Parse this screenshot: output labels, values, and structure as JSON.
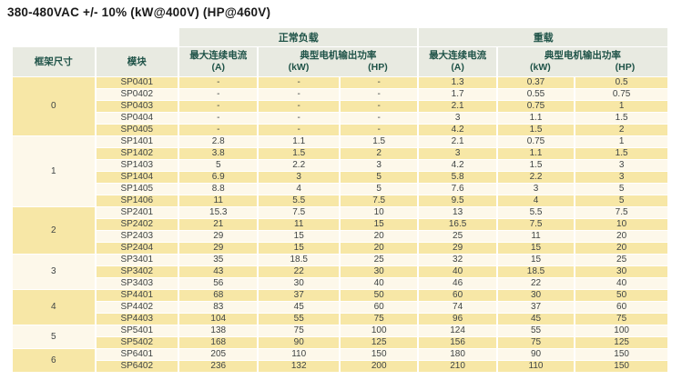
{
  "title": "380-480VAC +/- 10% (kW@400V) (HP@460V)",
  "colors": {
    "row_yellow": "#f7e7a6",
    "row_cream": "#fdf8ea",
    "header_bg": "#e8eae1",
    "header_text": "#1f5348",
    "data_text": "#3f4444"
  },
  "table": {
    "header": {
      "frame_size": "框架尺寸",
      "module": "模块",
      "normal_load": "正常负载",
      "heavy_load": "重载",
      "max_current": "最大连续电流",
      "current_unit": "(A)",
      "typical_power": "典型电机输出功率",
      "kw_unit": "(kW)",
      "hp_unit": "(HP)"
    },
    "groups": [
      {
        "frame": "0",
        "rows": [
          {
            "module": "SP0401",
            "values": [
              "-",
              "-",
              "-",
              "1.3",
              "0.37",
              "0.5"
            ]
          },
          {
            "module": "SP0402",
            "values": [
              "-",
              "-",
              "-",
              "1.7",
              "0.55",
              "0.75"
            ]
          },
          {
            "module": "SP0403",
            "values": [
              "-",
              "-",
              "-",
              "2.1",
              "0.75",
              "1"
            ]
          },
          {
            "module": "SP0404",
            "values": [
              "-",
              "-",
              "-",
              "3",
              "1.1",
              "1.5"
            ]
          },
          {
            "module": "SP0405",
            "values": [
              "-",
              "-",
              "-",
              "4.2",
              "1.5",
              "2"
            ]
          }
        ]
      },
      {
        "frame": "1",
        "rows": [
          {
            "module": "SP1401",
            "values": [
              "2.8",
              "1.1",
              "1.5",
              "2.1",
              "0.75",
              "1"
            ]
          },
          {
            "module": "SP1402",
            "values": [
              "3.8",
              "1.5",
              "2",
              "3",
              "1.1",
              "1.5"
            ]
          },
          {
            "module": "SP1403",
            "values": [
              "5",
              "2.2",
              "3",
              "4.2",
              "1.5",
              "3"
            ]
          },
          {
            "module": "SP1404",
            "values": [
              "6.9",
              "3",
              "5",
              "5.8",
              "2.2",
              "3"
            ]
          },
          {
            "module": "SP1405",
            "values": [
              "8.8",
              "4",
              "5",
              "7.6",
              "3",
              "5"
            ]
          },
          {
            "module": "SP1406",
            "values": [
              "11",
              "5.5",
              "7.5",
              "9.5",
              "4",
              "5"
            ]
          }
        ]
      },
      {
        "frame": "2",
        "rows": [
          {
            "module": "SP2401",
            "values": [
              "15.3",
              "7.5",
              "10",
              "13",
              "5.5",
              "7.5"
            ]
          },
          {
            "module": "SP2402",
            "values": [
              "21",
              "11",
              "15",
              "16.5",
              "7.5",
              "10"
            ]
          },
          {
            "module": "SP2403",
            "values": [
              "29",
              "15",
              "20",
              "25",
              "11",
              "20"
            ]
          },
          {
            "module": "SP2404",
            "values": [
              "29",
              "15",
              "20",
              "29",
              "15",
              "20"
            ]
          }
        ]
      },
      {
        "frame": "3",
        "rows": [
          {
            "module": "SP3401",
            "values": [
              "35",
              "18.5",
              "25",
              "32",
              "15",
              "25"
            ]
          },
          {
            "module": "SP3402",
            "values": [
              "43",
              "22",
              "30",
              "40",
              "18.5",
              "30"
            ]
          },
          {
            "module": "SP3403",
            "values": [
              "56",
              "30",
              "40",
              "46",
              "22",
              "40"
            ]
          }
        ]
      },
      {
        "frame": "4",
        "rows": [
          {
            "module": "SP4401",
            "values": [
              "68",
              "37",
              "50",
              "60",
              "30",
              "50"
            ]
          },
          {
            "module": "SP4402",
            "values": [
              "83",
              "45",
              "60",
              "74",
              "37",
              "60"
            ]
          },
          {
            "module": "SP4403",
            "values": [
              "104",
              "55",
              "75",
              "96",
              "45",
              "75"
            ]
          }
        ]
      },
      {
        "frame": "5",
        "rows": [
          {
            "module": "SP5401",
            "values": [
              "138",
              "75",
              "100",
              "124",
              "55",
              "100"
            ]
          },
          {
            "module": "SP5402",
            "values": [
              "168",
              "90",
              "125",
              "156",
              "75",
              "125"
            ]
          }
        ]
      },
      {
        "frame": "6",
        "rows": [
          {
            "module": "SP6401",
            "values": [
              "205",
              "110",
              "150",
              "180",
              "90",
              "150"
            ]
          },
          {
            "module": "SP6402",
            "values": [
              "236",
              "132",
              "200",
              "210",
              "110",
              "150"
            ]
          }
        ]
      }
    ]
  }
}
